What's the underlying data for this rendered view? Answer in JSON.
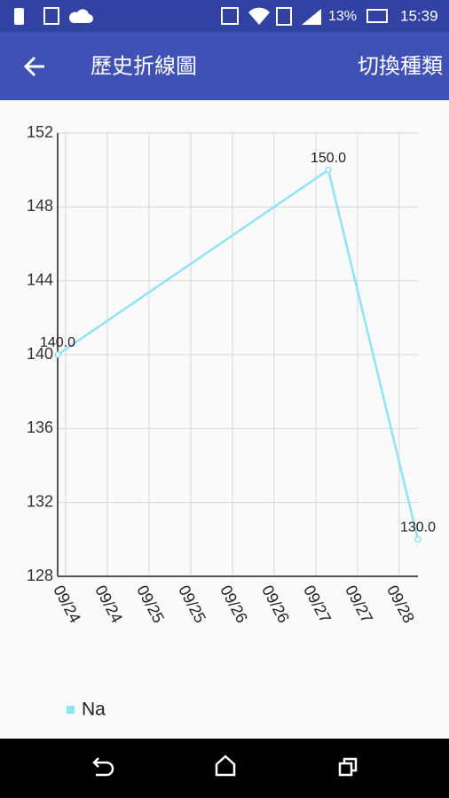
{
  "status_bar": {
    "battery": "13%",
    "time": "15:39"
  },
  "app_bar": {
    "title": "歷史折線圖",
    "action": "切換種類"
  },
  "chart_data": {
    "type": "line",
    "x": [
      -0.19,
      6.3,
      8.45
    ],
    "xlim": [
      -0.19,
      8.45
    ],
    "xticks": [
      {
        "value": 0,
        "label": "09/24"
      },
      {
        "value": 1,
        "label": "09/24"
      },
      {
        "value": 2,
        "label": "09/25"
      },
      {
        "value": 3,
        "label": "09/25"
      },
      {
        "value": 4,
        "label": "09/26"
      },
      {
        "value": 5,
        "label": "09/26"
      },
      {
        "value": 6,
        "label": "09/27"
      },
      {
        "value": 7,
        "label": "09/27"
      },
      {
        "value": 8,
        "label": "09/28"
      }
    ],
    "ylim": [
      128,
      152
    ],
    "yticks": [
      128,
      132,
      136,
      140,
      144,
      148,
      152
    ],
    "grid": true,
    "series": [
      {
        "name": "Na",
        "color": "#8ee4f5",
        "values": [
          140,
          150,
          130
        ],
        "value_labels": [
          "140.0",
          "150.0",
          "130.0"
        ]
      }
    ]
  }
}
